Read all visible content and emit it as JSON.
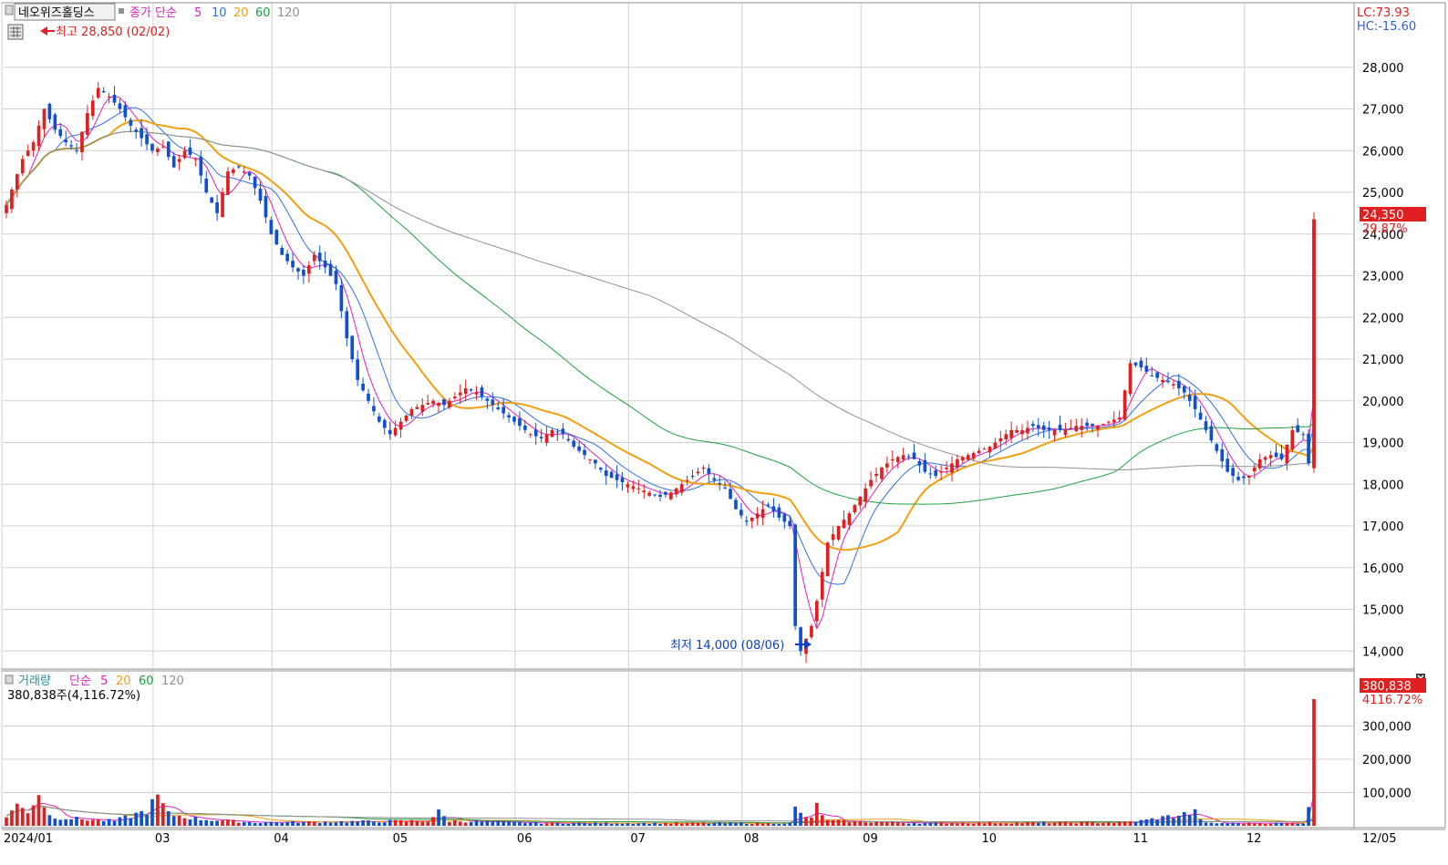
{
  "price_panel": {
    "stock_name": "네오위즈홀딩스",
    "ma_label": "종가 단순",
    "ma_periods": [
      "5",
      "10",
      "20",
      "60",
      "120"
    ],
    "ma_colors": [
      "#e020c0",
      "#3070e0",
      "#f0a010",
      "#20a040",
      "#909090"
    ],
    "high_marker": "최고 28,850 (02/02)",
    "low_marker": "최저 14,000 (08/06)",
    "lc_label": "LC:73.93",
    "hc_label": "HC:-15.60",
    "last_price_tag": "24,350",
    "last_change_pct": "29.87%",
    "y_ticks": [
      "28,000",
      "27,000",
      "26,000",
      "25,000",
      "24,000",
      "23,000",
      "22,000",
      "21,000",
      "20,000",
      "19,000",
      "18,000",
      "17,000",
      "16,000",
      "15,000",
      "14,000"
    ]
  },
  "volume_panel": {
    "label": "거래량",
    "ma_label": "단순",
    "ma_periods": [
      "5",
      "20",
      "60",
      "120"
    ],
    "ma_colors": [
      "#e020c0",
      "#f0a010",
      "#20a040",
      "#909090"
    ],
    "current_label": "380,838주(4,116.72%)",
    "last_volume_tag": "380,838",
    "last_volume_pct": "4116.72%",
    "y_ticks": [
      "300,000",
      "200,000",
      "100,000"
    ]
  },
  "x_axis": {
    "labels": [
      "2024/01",
      "03",
      "04",
      "05",
      "06",
      "07",
      "08",
      "09",
      "10",
      "11",
      "12",
      "12/05"
    ]
  },
  "colors": {
    "up": "#e02020",
    "down": "#1050d0",
    "grid": "#d0d0d0",
    "border": "#909090"
  },
  "chart_data": {
    "type": "candlestick",
    "title": "네오위즈홀딩스",
    "period": "2024/01 – 2024/12/05",
    "price_ylim": [
      13700,
      29000
    ],
    "volume_ylim": [
      0,
      400000
    ],
    "price_anchors": [
      [
        0,
        24700
      ],
      [
        3,
        25800
      ],
      [
        5,
        26200
      ],
      [
        7,
        27000
      ],
      [
        9,
        26500
      ],
      [
        11,
        26200
      ],
      [
        13,
        26000
      ],
      [
        15,
        26900
      ],
      [
        17,
        27500
      ],
      [
        19,
        27300
      ],
      [
        21,
        27000
      ],
      [
        23,
        26600
      ],
      [
        25,
        26300
      ],
      [
        27,
        26000
      ],
      [
        29,
        26100
      ],
      [
        31,
        25600
      ],
      [
        33,
        26000
      ],
      [
        35,
        25800
      ],
      [
        37,
        25000
      ],
      [
        39,
        24500
      ],
      [
        41,
        25500
      ],
      [
        43,
        25600
      ],
      [
        45,
        25400
      ],
      [
        47,
        24800
      ],
      [
        49,
        24000
      ],
      [
        51,
        23500
      ],
      [
        53,
        23200
      ],
      [
        55,
        23000
      ],
      [
        57,
        23500
      ],
      [
        59,
        23200
      ],
      [
        61,
        22800
      ],
      [
        63,
        21500
      ],
      [
        65,
        20500
      ],
      [
        67,
        20000
      ],
      [
        69,
        19500
      ],
      [
        71,
        19200
      ],
      [
        73,
        19500
      ],
      [
        75,
        19800
      ],
      [
        77,
        19900
      ],
      [
        79,
        20000
      ],
      [
        81,
        19900
      ],
      [
        83,
        20100
      ],
      [
        85,
        20300
      ],
      [
        87,
        20200
      ],
      [
        89,
        20000
      ],
      [
        91,
        19800
      ],
      [
        93,
        19600
      ],
      [
        95,
        19400
      ],
      [
        97,
        19200
      ],
      [
        99,
        19100
      ],
      [
        101,
        19300
      ],
      [
        103,
        19200
      ],
      [
        105,
        18900
      ],
      [
        107,
        18700
      ],
      [
        109,
        18500
      ],
      [
        111,
        18200
      ],
      [
        113,
        18100
      ],
      [
        115,
        18000
      ],
      [
        117,
        17900
      ],
      [
        119,
        17800
      ],
      [
        121,
        17700
      ],
      [
        123,
        17800
      ],
      [
        125,
        18000
      ],
      [
        127,
        18200
      ],
      [
        129,
        18400
      ],
      [
        131,
        18100
      ],
      [
        133,
        17900
      ],
      [
        135,
        17400
      ],
      [
        137,
        17100
      ],
      [
        139,
        17300
      ],
      [
        141,
        17500
      ],
      [
        143,
        17200
      ],
      [
        145,
        17000
      ],
      [
        146,
        14600
      ],
      [
        147,
        14000
      ],
      [
        149,
        14600
      ],
      [
        150,
        15200
      ],
      [
        152,
        16600
      ],
      [
        154,
        17000
      ],
      [
        156,
        17300
      ],
      [
        158,
        17700
      ],
      [
        160,
        18100
      ],
      [
        162,
        18400
      ],
      [
        164,
        18600
      ],
      [
        166,
        18700
      ],
      [
        168,
        18600
      ],
      [
        170,
        18300
      ],
      [
        172,
        18200
      ],
      [
        174,
        18400
      ],
      [
        176,
        18600
      ],
      [
        178,
        18700
      ],
      [
        180,
        18800
      ],
      [
        182,
        18900
      ],
      [
        184,
        19100
      ],
      [
        186,
        19300
      ],
      [
        188,
        19300
      ],
      [
        190,
        19400
      ],
      [
        192,
        19300
      ],
      [
        194,
        19300
      ],
      [
        196,
        19300
      ],
      [
        198,
        19400
      ],
      [
        200,
        19400
      ],
      [
        202,
        19400
      ],
      [
        204,
        19500
      ],
      [
        206,
        19600
      ],
      [
        208,
        20900
      ],
      [
        210,
        20800
      ],
      [
        212,
        20600
      ],
      [
        214,
        20500
      ],
      [
        216,
        20400
      ],
      [
        218,
        20200
      ],
      [
        220,
        19800
      ],
      [
        222,
        19300
      ],
      [
        224,
        18800
      ],
      [
        226,
        18300
      ],
      [
        228,
        18100
      ],
      [
        230,
        18200
      ],
      [
        232,
        18600
      ],
      [
        234,
        18700
      ],
      [
        236,
        18600
      ],
      [
        238,
        19300
      ],
      [
        240,
        19200
      ],
      [
        241,
        18500
      ],
      [
        242,
        24350
      ]
    ],
    "volume_anchors": [
      [
        0,
        30000
      ],
      [
        2,
        60000
      ],
      [
        4,
        45000
      ],
      [
        6,
        100000
      ],
      [
        8,
        30000
      ],
      [
        10,
        25000
      ],
      [
        14,
        20000
      ],
      [
        20,
        15000
      ],
      [
        26,
        45000
      ],
      [
        28,
        85000
      ],
      [
        30,
        35000
      ],
      [
        36,
        20000
      ],
      [
        46,
        10000
      ],
      [
        60,
        12000
      ],
      [
        78,
        15000
      ],
      [
        80,
        40000
      ],
      [
        82,
        15000
      ],
      [
        100,
        8000
      ],
      [
        120,
        8000
      ],
      [
        145,
        8000
      ],
      [
        146,
        50000
      ],
      [
        147,
        35000
      ],
      [
        149,
        20000
      ],
      [
        150,
        60000
      ],
      [
        152,
        15000
      ],
      [
        170,
        8000
      ],
      [
        206,
        10000
      ],
      [
        210,
        15000
      ],
      [
        220,
        40000
      ],
      [
        222,
        8000
      ],
      [
        240,
        8000
      ],
      [
        241,
        70000
      ],
      [
        242,
        380838
      ]
    ],
    "reference_lines": {
      "high": 28850,
      "low": 14000,
      "last": 24350
    }
  }
}
